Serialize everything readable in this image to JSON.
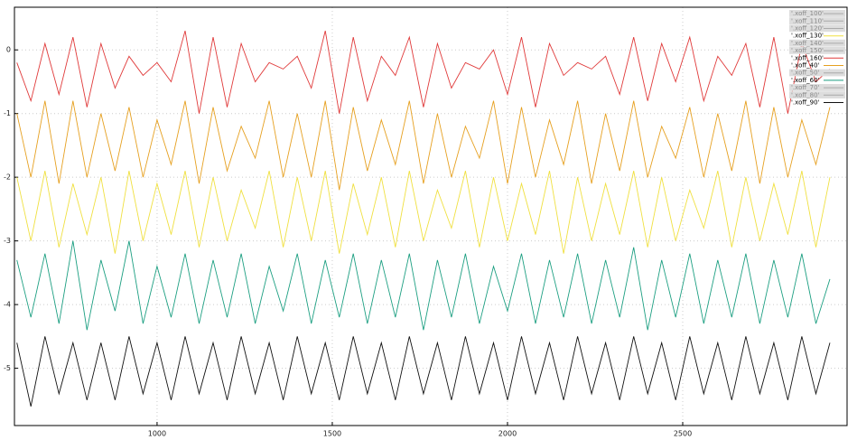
{
  "chart_data": {
    "type": "line",
    "x": [
      600,
      640,
      680,
      720,
      760,
      800,
      840,
      880,
      920,
      960,
      1000,
      1040,
      1080,
      1120,
      1160,
      1200,
      1240,
      1280,
      1320,
      1360,
      1400,
      1440,
      1480,
      1520,
      1560,
      1600,
      1640,
      1680,
      1720,
      1760,
      1800,
      1840,
      1880,
      1920,
      1960,
      2000,
      2040,
      2080,
      2120,
      2160,
      2200,
      2240,
      2280,
      2320,
      2360,
      2400,
      2440,
      2480,
      2520,
      2560,
      2600,
      2640,
      2680,
      2720,
      2760,
      2800,
      2840,
      2880,
      2920
    ],
    "xlim": [
      593,
      2969
    ],
    "xticks": [
      1000,
      1500,
      2000,
      2500
    ],
    "ylim": [
      -5.9,
      0.67
    ],
    "yticks": [
      0,
      -1,
      -2,
      -3,
      -4,
      -5
    ],
    "grid": true,
    "legend": "top-right",
    "series": [
      {
        "name": "'.xoff_100'",
        "hidden": true
      },
      {
        "name": "'.xoff_110'",
        "hidden": true
      },
      {
        "name": "'.xoff_120'",
        "hidden": true
      },
      {
        "name": "'.xoff_130'",
        "color": "#f0e040",
        "values": [
          -2.0,
          -3.0,
          -1.9,
          -3.1,
          -2.1,
          -2.9,
          -2.0,
          -3.2,
          -1.9,
          -3.0,
          -2.1,
          -2.9,
          -1.9,
          -3.1,
          -2.0,
          -3.0,
          -2.2,
          -2.8,
          -1.9,
          -3.1,
          -2.0,
          -3.0,
          -1.9,
          -3.2,
          -2.1,
          -2.9,
          -2.0,
          -3.1,
          -1.9,
          -3.0,
          -2.2,
          -2.8,
          -1.9,
          -3.1,
          -2.0,
          -3.0,
          -2.1,
          -2.9,
          -1.9,
          -3.2,
          -2.0,
          -3.0,
          -2.1,
          -2.9,
          -1.9,
          -3.1,
          -2.0,
          -3.0,
          -2.2,
          -2.8,
          -1.9,
          -3.1,
          -2.0,
          -3.0,
          -2.1,
          -2.9,
          -1.9,
          -3.1,
          -2.0
        ]
      },
      {
        "name": "'.xoff_140'",
        "hidden": true
      },
      {
        "name": "'.xoff_150'",
        "hidden": true
      },
      {
        "name": "'.xoff_160'",
        "color": "#e03a3a",
        "values": [
          -0.2,
          -0.8,
          0.1,
          -0.7,
          0.2,
          -0.9,
          0.1,
          -0.6,
          -0.1,
          -0.4,
          -0.2,
          -0.5,
          0.3,
          -1.0,
          0.2,
          -0.9,
          0.1,
          -0.5,
          -0.2,
          -0.3,
          -0.1,
          -0.6,
          0.3,
          -1.0,
          0.2,
          -0.8,
          -0.1,
          -0.4,
          0.2,
          -0.9,
          0.1,
          -0.6,
          -0.2,
          -0.3,
          0.0,
          -0.7,
          0.2,
          -0.9,
          0.1,
          -0.4,
          -0.2,
          -0.3,
          -0.1,
          -0.7,
          0.2,
          -0.8,
          0.1,
          -0.5,
          0.2,
          -0.8,
          -0.1,
          -0.4,
          0.1,
          -0.9,
          0.2,
          -1.0,
          0.1,
          -0.5,
          -0.3
        ]
      },
      {
        "name": "'.xoff_40'",
        "color": "#e6a020",
        "values": [
          -1.0,
          -2.0,
          -0.8,
          -2.1,
          -0.8,
          -2.0,
          -1.0,
          -1.9,
          -0.9,
          -2.0,
          -1.1,
          -1.8,
          -0.8,
          -2.1,
          -0.9,
          -1.9,
          -1.2,
          -1.7,
          -0.8,
          -2.0,
          -1.0,
          -2.0,
          -0.8,
          -2.2,
          -0.9,
          -1.9,
          -1.1,
          -1.8,
          -0.8,
          -2.1,
          -1.0,
          -2.0,
          -1.2,
          -1.7,
          -0.8,
          -2.1,
          -0.9,
          -2.0,
          -1.1,
          -1.8,
          -0.8,
          -2.1,
          -1.0,
          -1.9,
          -0.8,
          -2.0,
          -1.2,
          -1.7,
          -0.9,
          -2.0,
          -1.0,
          -1.9,
          -0.8,
          -2.1,
          -0.9,
          -2.0,
          -1.1,
          -1.8,
          -0.9
        ]
      },
      {
        "name": "'.xoff_50'",
        "hidden": true
      },
      {
        "name": "'.xoff_60'",
        "color": "#1a9e80",
        "values": [
          -3.3,
          -4.2,
          -3.2,
          -4.3,
          -3.0,
          -4.4,
          -3.3,
          -4.1,
          -3.0,
          -4.3,
          -3.4,
          -4.2,
          -3.2,
          -4.3,
          -3.3,
          -4.2,
          -3.2,
          -4.3,
          -3.4,
          -4.1,
          -3.2,
          -4.3,
          -3.3,
          -4.2,
          -3.2,
          -4.3,
          -3.3,
          -4.2,
          -3.2,
          -4.4,
          -3.3,
          -4.2,
          -3.2,
          -4.3,
          -3.4,
          -4.1,
          -3.2,
          -4.3,
          -3.3,
          -4.2,
          -3.2,
          -4.3,
          -3.3,
          -4.2,
          -3.1,
          -4.4,
          -3.3,
          -4.2,
          -3.2,
          -4.3,
          -3.3,
          -4.2,
          -3.2,
          -4.3,
          -3.3,
          -4.2,
          -3.2,
          -4.3,
          -3.6
        ]
      },
      {
        "name": "'.xoff_70'",
        "hidden": true
      },
      {
        "name": "'.xoff_80'",
        "hidden": true
      },
      {
        "name": "'.xoff_90'",
        "color": "#111111",
        "values": [
          -4.6,
          -5.6,
          -4.5,
          -5.4,
          -4.6,
          -5.5,
          -4.6,
          -5.5,
          -4.5,
          -5.4,
          -4.6,
          -5.5,
          -4.5,
          -5.4,
          -4.6,
          -5.5,
          -4.5,
          -5.4,
          -4.6,
          -5.5,
          -4.5,
          -5.4,
          -4.6,
          -5.5,
          -4.5,
          -5.4,
          -4.6,
          -5.5,
          -4.5,
          -5.4,
          -4.6,
          -5.5,
          -4.5,
          -5.4,
          -4.6,
          -5.5,
          -4.5,
          -5.4,
          -4.6,
          -5.5,
          -4.5,
          -5.4,
          -4.6,
          -5.5,
          -4.5,
          -5.4,
          -4.6,
          -5.5,
          -4.5,
          -5.4,
          -4.6,
          -5.5,
          -4.5,
          -5.4,
          -4.6,
          -5.5,
          -4.5,
          -5.4,
          -4.6
        ]
      }
    ]
  }
}
